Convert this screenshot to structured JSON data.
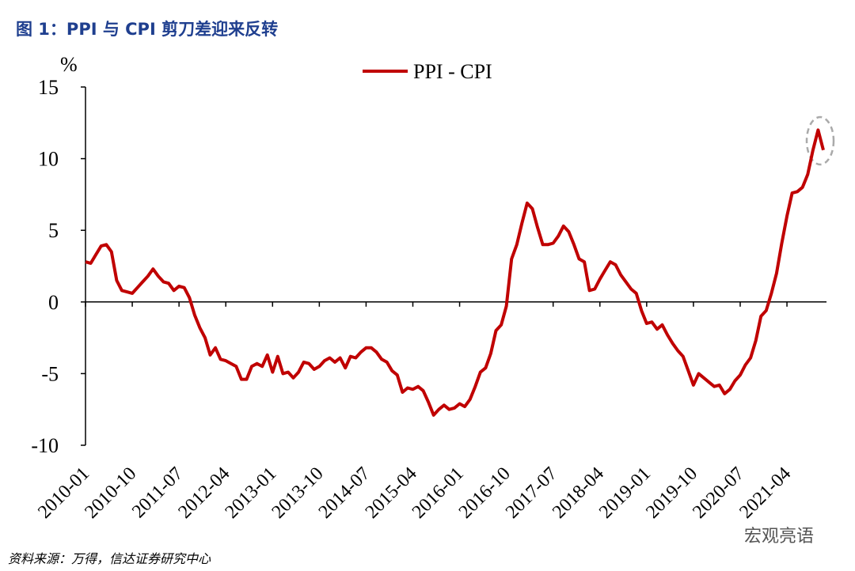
{
  "chart_data": {
    "type": "line",
    "title": "图 1：PPI 与 CPI 剪刀差迎来反转",
    "y_label": "%",
    "source": "资料来源：万得，信达证券研究中心",
    "watermark": "宏观亮语",
    "categories": [
      "2010-01",
      null,
      null,
      null,
      null,
      null,
      null,
      null,
      null,
      "2010-10",
      null,
      null,
      null,
      null,
      null,
      null,
      null,
      null,
      "2011-07",
      null,
      null,
      null,
      null,
      null,
      null,
      null,
      null,
      "2012-04",
      null,
      null,
      null,
      null,
      null,
      null,
      null,
      null,
      "2013-01",
      null,
      null,
      null,
      null,
      null,
      null,
      null,
      null,
      "2013-10",
      null,
      null,
      null,
      null,
      null,
      null,
      null,
      null,
      "2014-07",
      null,
      null,
      null,
      null,
      null,
      null,
      null,
      null,
      "2015-04",
      null,
      null,
      null,
      null,
      null,
      null,
      null,
      null,
      "2016-01",
      null,
      null,
      null,
      null,
      null,
      null,
      null,
      null,
      "2016-10",
      null,
      null,
      null,
      null,
      null,
      null,
      null,
      null,
      "2017-07",
      null,
      null,
      null,
      null,
      null,
      null,
      null,
      null,
      "2018-04",
      null,
      null,
      null,
      null,
      null,
      null,
      null,
      null,
      "2019-01",
      null,
      null,
      null,
      null,
      null,
      null,
      null,
      null,
      "2019-10",
      null,
      null,
      null,
      null,
      null,
      null,
      null,
      null,
      "2020-07",
      null,
      null,
      null,
      null,
      null,
      null,
      null,
      null,
      "2021-04",
      null,
      null,
      null,
      null,
      null,
      null,
      null
    ],
    "series": [
      {
        "name": "PPI - CPI",
        "color": "#c00000",
        "values": [
          2.8,
          2.7,
          3.3,
          3.9,
          4.0,
          3.5,
          1.5,
          0.8,
          0.7,
          0.6,
          1.0,
          1.4,
          1.8,
          2.3,
          1.8,
          1.4,
          1.3,
          0.8,
          1.1,
          1.0,
          0.3,
          -0.9,
          -1.8,
          -2.5,
          -3.7,
          -3.2,
          -4.0,
          -4.1,
          -4.3,
          -4.5,
          -5.4,
          -5.4,
          -4.5,
          -4.3,
          -4.5,
          -3.7,
          -4.9,
          -3.8,
          -5.0,
          -4.9,
          -5.3,
          -4.9,
          -4.2,
          -4.3,
          -4.7,
          -4.5,
          -4.1,
          -3.9,
          -4.2,
          -3.9,
          -4.6,
          -3.8,
          -3.9,
          -3.5,
          -3.2,
          -3.2,
          -3.5,
          -4.0,
          -4.2,
          -4.8,
          -5.1,
          -6.3,
          -6.0,
          -6.1,
          -5.9,
          -6.2,
          -7.0,
          -7.9,
          -7.5,
          -7.2,
          -7.5,
          -7.4,
          -7.1,
          -7.3,
          -6.8,
          -5.9,
          -4.9,
          -4.6,
          -3.6,
          -2.0,
          -1.6,
          -0.3,
          3.0,
          4.0,
          5.5,
          6.9,
          6.5,
          5.2,
          4.0,
          4.0,
          4.1,
          4.6,
          5.3,
          4.9,
          4.0,
          3.0,
          2.8,
          0.8,
          0.9,
          1.6,
          2.2,
          2.8,
          2.6,
          1.9,
          1.4,
          0.9,
          0.6,
          -0.6,
          -1.5,
          -1.4,
          -1.9,
          -1.6,
          -2.3,
          -2.9,
          -3.4,
          -3.8,
          -4.8,
          -5.8,
          -5.0,
          -5.3,
          -5.6,
          -5.9,
          -5.8,
          -6.4,
          -6.1,
          -5.5,
          -5.1,
          -4.4,
          -3.9,
          -2.7,
          -1.0,
          -0.6,
          0.6,
          2.0,
          4.1,
          6.0,
          7.6,
          7.7,
          8.0,
          8.9,
          10.6,
          12.0,
          10.6
        ]
      }
    ],
    "ylim": [
      -10,
      15
    ],
    "yticks": [
      -10,
      -5,
      0,
      5,
      10,
      15
    ],
    "grid": false,
    "legend": "top"
  }
}
